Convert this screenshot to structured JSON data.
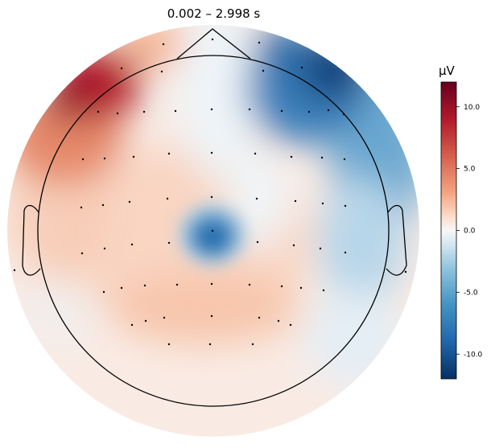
{
  "chart_data": {
    "type": "heatmap",
    "subtype": "eeg-topomap",
    "title": "0.002 – 2.998 s",
    "colorbar": {
      "unit": "µV",
      "range": [
        -12,
        12
      ],
      "ticks": [
        10.0,
        5.0,
        0.0,
        -5.0,
        -10.0
      ],
      "tick_labels": [
        "10.0",
        "5.0",
        "0.0",
        "-5.0",
        "-10.0"
      ],
      "colormap": "RdBu_r",
      "colors": {
        "max": "#67001f",
        "high": "#d6604d",
        "mid_high": "#fddbc7",
        "zero": "#f7f7f7",
        "mid_low": "#d1e5f0",
        "low": "#4393c3",
        "min": "#053061"
      }
    },
    "features": {
      "head_outline": true,
      "nose": true,
      "ears": true,
      "sensor_markers": true,
      "field_extrapolated_beyond_head": true
    },
    "regions": [
      {
        "area": "left-frontal (upper-left rim)",
        "value": 11
      },
      {
        "area": "right-frontal (upper-right rim)",
        "value": -11
      },
      {
        "area": "central vertex",
        "value": -10
      },
      {
        "area": "right temporal",
        "value": -4
      },
      {
        "area": "left temporal",
        "value": 3
      },
      {
        "area": "parietal-occipital midline",
        "value": 2
      },
      {
        "area": "left posterior",
        "value": 0
      }
    ]
  }
}
